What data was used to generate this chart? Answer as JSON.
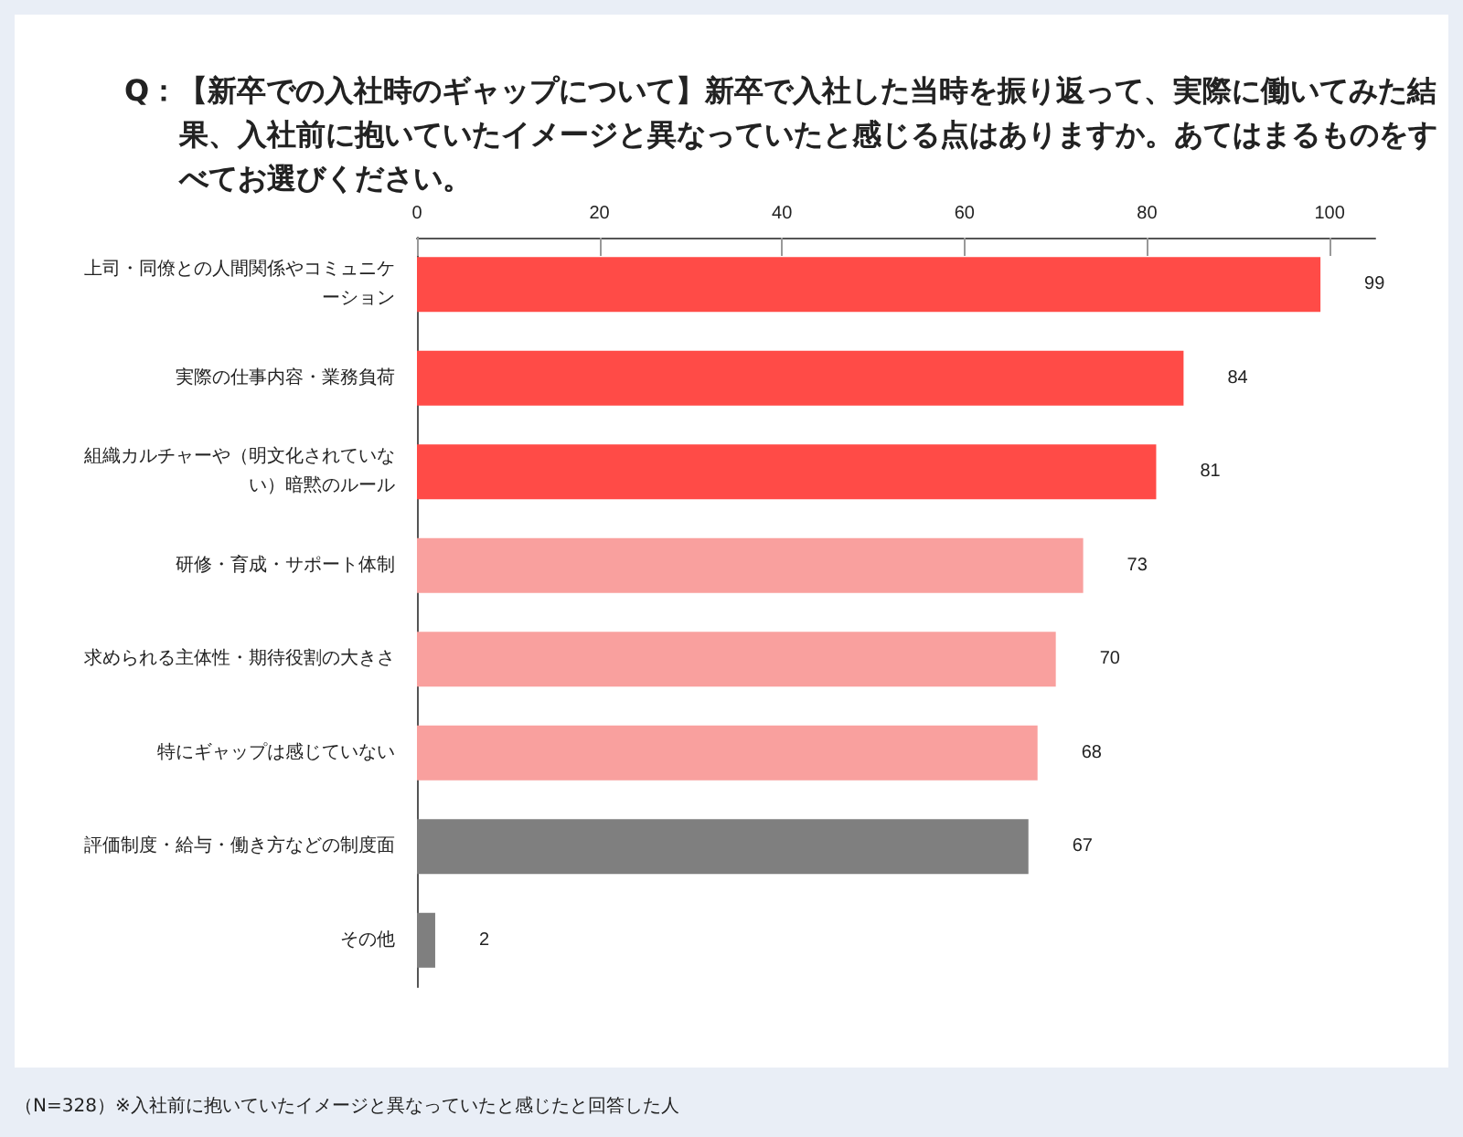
{
  "chart_data": {
    "type": "bar",
    "orientation": "horizontal",
    "title": "Q：【新卒での入社時のギャップについて】新卒で入社した当時を振り返って、実際に働いてみた結果、入社前に抱いていたイメージと異なっていたと感じる点はありますか。あてはまるものをすべてお選びください。",
    "categories": [
      "上司・同僚との人間関係やコミュニケーション",
      "実際の仕事内容・業務負荷",
      "組織カルチャーや（明文化されていない）暗黙のルール",
      "研修・育成・サポート体制",
      "求められる主体性・期待役割の大きさ",
      "特にギャップは感じていない",
      "評価制度・給与・働き方などの制度面",
      "その他"
    ],
    "values": [
      99,
      84,
      81,
      73,
      70,
      68,
      67,
      2
    ],
    "colors": [
      "#ff4b47",
      "#ff4b47",
      "#ff4b47",
      "#f9a09e",
      "#f9a09e",
      "#f9a09e",
      "#7f7f7f",
      "#7f7f7f"
    ],
    "xlim": [
      0,
      105
    ],
    "xticks": [
      0,
      20,
      40,
      60,
      80,
      100
    ],
    "data_labels": true,
    "annotations": [
      "（N=328）※入社前に抱いていたイメージと異なっていたと感じたと回答した人"
    ]
  }
}
